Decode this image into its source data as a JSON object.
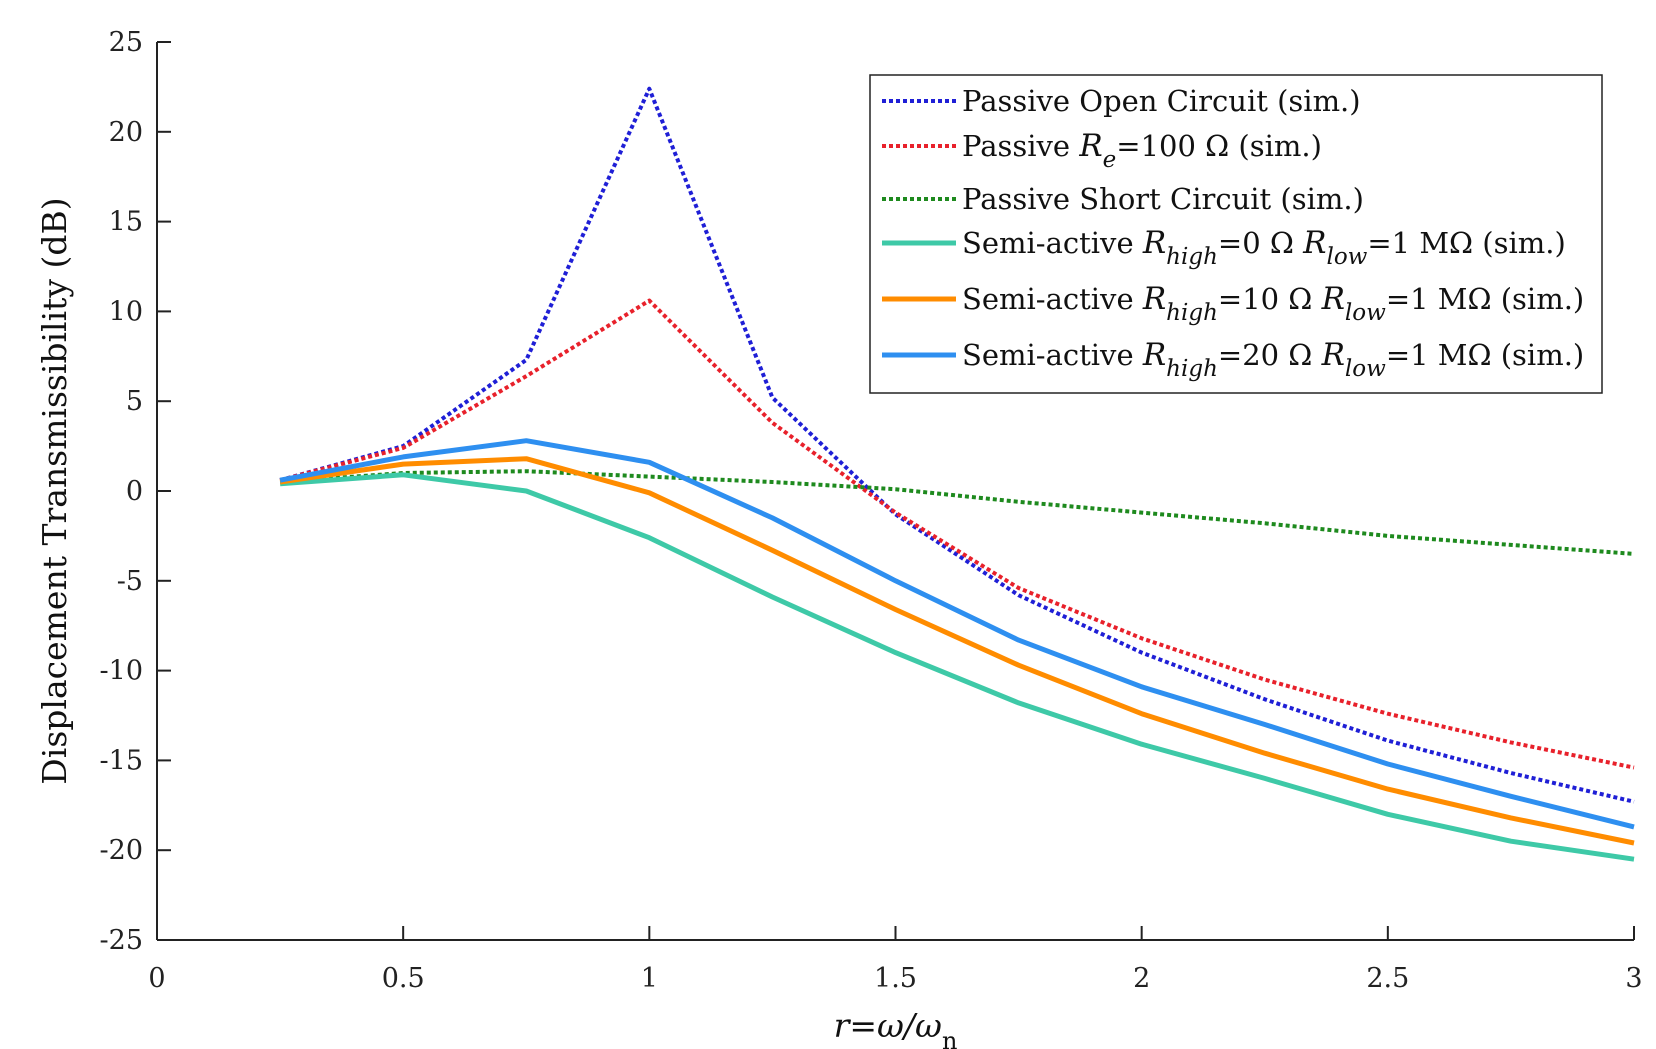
{
  "chart_data": {
    "type": "line",
    "title": "",
    "xlabel": "r=ω/ω_n",
    "ylabel": "Displacement Transmissibility (dB)",
    "xlim": [
      0,
      3
    ],
    "ylim": [
      -25,
      25
    ],
    "grid": false,
    "legend_position": "top-right",
    "x_ticks": [
      0,
      0.5,
      1,
      1.5,
      2,
      2.5,
      3
    ],
    "x_tick_labels": [
      "0",
      "0.5",
      "1",
      "1.5",
      "2",
      "2.5",
      "3"
    ],
    "y_ticks": [
      25,
      20,
      15,
      10,
      5,
      0,
      -5,
      -10,
      -15,
      -20,
      -25
    ],
    "y_tick_labels": [
      "25",
      "20",
      "15",
      "10",
      "5",
      "0",
      "-5",
      "-10",
      "-15",
      "-20",
      "-25"
    ],
    "x": [
      0.25,
      0.5,
      0.75,
      1,
      1.25,
      1.5,
      1.75,
      2,
      2.25,
      2.5,
      2.75,
      3
    ],
    "series": [
      {
        "name": "Passive Open Circuit (sim.)",
        "legend": {
          "pre": "Passive Open Circuit (sim.)"
        },
        "color": "#1f1fd6",
        "style": "dotted",
        "values": [
          0.6,
          2.5,
          7.3,
          22.4,
          5.2,
          -1.3,
          -5.8,
          -9.0,
          -11.6,
          -13.9,
          -15.7,
          -17.3
        ]
      },
      {
        "name": "Passive Re=100 Ω (sim.)",
        "legend": {
          "pre": "Passive ",
          "sym": "R",
          "sub": "e",
          "post": "=100 Ω (sim.)"
        },
        "color": "#e8212b",
        "style": "dotted",
        "values": [
          0.6,
          2.4,
          6.4,
          10.6,
          3.8,
          -1.2,
          -5.4,
          -8.2,
          -10.5,
          -12.4,
          -14.0,
          -15.4
        ]
      },
      {
        "name": "Passive Short Circuit (sim.)",
        "legend": {
          "pre": "Passive Short Circuit (sim.)"
        },
        "color": "#1e8a1e",
        "style": "dotted",
        "values": [
          0.5,
          1.0,
          1.1,
          0.8,
          0.5,
          0.1,
          -0.6,
          -1.2,
          -1.8,
          -2.5,
          -3.0,
          -3.5
        ]
      },
      {
        "name": "Semi-active Rhigh=0 Ω Rlow=1 MΩ (sim.)",
        "legend": {
          "pre": "Semi-active ",
          "sym": "R",
          "sub": "high",
          "mid": "=0 Ω ",
          "sym2": "R",
          "sub2": "low",
          "post": "=1 MΩ (sim.)"
        },
        "color": "#3ec9a7",
        "style": "solid",
        "values": [
          0.4,
          0.9,
          0.0,
          -2.6,
          -5.9,
          -9.0,
          -11.8,
          -14.1,
          -16.0,
          -18.0,
          -19.5,
          -20.5
        ]
      },
      {
        "name": "Semi-active Rhigh=10 Ω Rlow=1 MΩ (sim.)",
        "legend": {
          "pre": "Semi-active ",
          "sym": "R",
          "sub": "high",
          "mid": "=10 Ω ",
          "sym2": "R",
          "sub2": "low",
          "post": "=1 MΩ (sim.)"
        },
        "color": "#ff8c00",
        "style": "solid",
        "values": [
          0.5,
          1.5,
          1.8,
          -0.1,
          -3.3,
          -6.6,
          -9.7,
          -12.4,
          -14.6,
          -16.6,
          -18.2,
          -19.6
        ]
      },
      {
        "name": "Semi-active Rhigh=20 Ω Rlow=1 MΩ (sim.)",
        "legend": {
          "pre": "Semi-active ",
          "sym": "R",
          "sub": "high",
          "mid": "=20 Ω ",
          "sym2": "R",
          "sub2": "low",
          "post": "=1 MΩ (sim.)"
        },
        "color": "#2e8ff0",
        "style": "solid",
        "values": [
          0.6,
          1.9,
          2.8,
          1.6,
          -1.5,
          -5.0,
          -8.3,
          -10.9,
          -13.0,
          -15.2,
          -17.0,
          -18.7
        ]
      }
    ]
  }
}
